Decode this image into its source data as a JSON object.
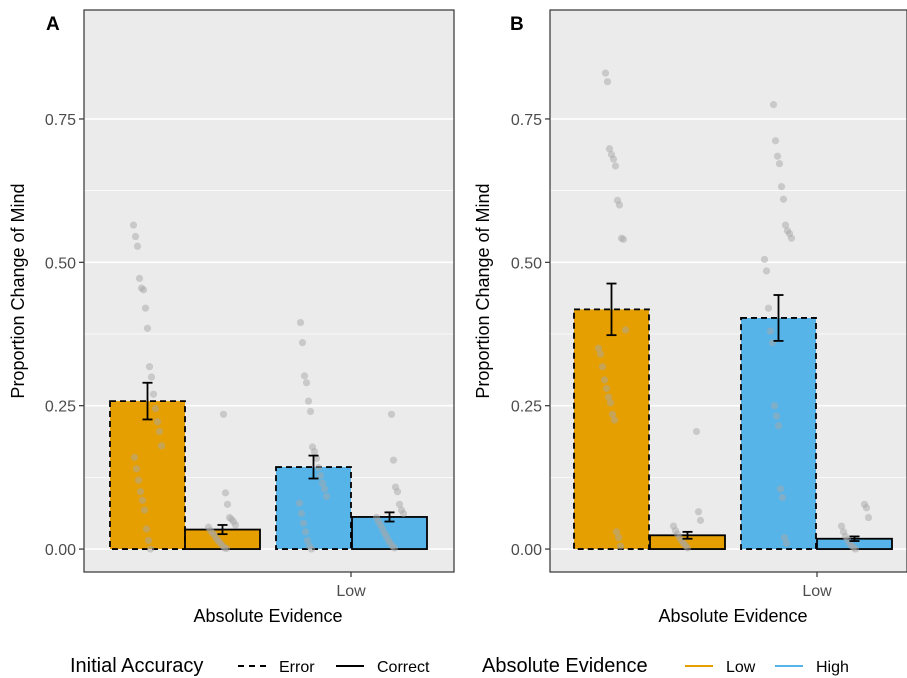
{
  "chart_data": [
    {
      "type": "bar",
      "panel_label": "A",
      "xlabel": "Absolute Evidence",
      "ylabel": "Proportion Change of Mind",
      "ylim": [
        -0.04,
        0.94
      ],
      "yticks": [
        0.0,
        0.25,
        0.5,
        0.75
      ],
      "ytick_labels": [
        "0.00",
        "0.25",
        "0.50",
        "0.75"
      ],
      "xtick_labels": [
        "Low"
      ],
      "grid": true,
      "bars": [
        {
          "evidence": "Low",
          "accuracy": "Error",
          "value": 0.258,
          "err": 0.032,
          "points": [
            0.565,
            0.545,
            0.528,
            0.472,
            0.455,
            0.452,
            0.42,
            0.385,
            0.318,
            0.3,
            0.27,
            0.245,
            0.222,
            0.205,
            0.18,
            0.16,
            0.14,
            0.12,
            0.1,
            0.085,
            0.068,
            0.035,
            0.015,
            0.0
          ]
        },
        {
          "evidence": "Low",
          "accuracy": "Correct",
          "value": 0.034,
          "err": 0.008,
          "points": [
            0.235,
            0.098,
            0.078,
            0.055,
            0.052,
            0.048,
            0.042,
            0.038,
            0.032,
            0.028,
            0.024,
            0.018,
            0.014,
            0.01,
            0.006,
            0.002,
            0.001
          ]
        },
        {
          "evidence": "High",
          "accuracy": "Error",
          "value": 0.143,
          "err": 0.02,
          "points": [
            0.395,
            0.36,
            0.302,
            0.29,
            0.258,
            0.24,
            0.178,
            0.17,
            0.158,
            0.142,
            0.128,
            0.115,
            0.105,
            0.092,
            0.08,
            0.062,
            0.045,
            0.03,
            0.015,
            0.005,
            0.0
          ]
        },
        {
          "evidence": "High",
          "accuracy": "Correct",
          "value": 0.056,
          "err": 0.008,
          "points": [
            0.235,
            0.155,
            0.108,
            0.1,
            0.078,
            0.068,
            0.062,
            0.055,
            0.048,
            0.042,
            0.035,
            0.028,
            0.022,
            0.015,
            0.01,
            0.005,
            0.002
          ]
        }
      ]
    },
    {
      "type": "bar",
      "panel_label": "B",
      "xlabel": "Absolute Evidence",
      "ylabel": "Proportion Change of Mind",
      "ylim": [
        -0.04,
        0.94
      ],
      "yticks": [
        0.0,
        0.25,
        0.5,
        0.75
      ],
      "ytick_labels": [
        "0.00",
        "0.25",
        "0.50",
        "0.75"
      ],
      "xtick_labels": [
        "Low"
      ],
      "grid": true,
      "bars": [
        {
          "evidence": "Low",
          "accuracy": "Error",
          "value": 0.418,
          "err": 0.045,
          "points": [
            0.83,
            0.815,
            0.698,
            0.688,
            0.68,
            0.668,
            0.608,
            0.6,
            0.542,
            0.54,
            0.382,
            0.35,
            0.34,
            0.318,
            0.295,
            0.28,
            0.265,
            0.255,
            0.235,
            0.225,
            0.03,
            0.02,
            0.005
          ]
        },
        {
          "evidence": "Low",
          "accuracy": "Correct",
          "value": 0.024,
          "err": 0.006,
          "points": [
            0.205,
            0.065,
            0.05,
            0.04,
            0.032,
            0.026,
            0.02,
            0.015,
            0.01,
            0.006,
            0.002
          ]
        },
        {
          "evidence": "High",
          "accuracy": "Error",
          "value": 0.403,
          "err": 0.04,
          "points": [
            0.775,
            0.712,
            0.685,
            0.672,
            0.632,
            0.61,
            0.565,
            0.555,
            0.55,
            0.542,
            0.505,
            0.485,
            0.42,
            0.38,
            0.36,
            0.25,
            0.232,
            0.215,
            0.105,
            0.09,
            0.02,
            0.01
          ]
        },
        {
          "evidence": "High",
          "accuracy": "Correct",
          "value": 0.018,
          "err": 0.004,
          "points": [
            0.078,
            0.072,
            0.055,
            0.04,
            0.03,
            0.022,
            0.016,
            0.01,
            0.006,
            0.003,
            0.0
          ]
        }
      ]
    }
  ],
  "legend": {
    "accuracy_title": "Initial Accuracy",
    "accuracy_items": [
      {
        "label": "Error",
        "style": "dashed"
      },
      {
        "label": "Correct",
        "style": "solid"
      }
    ],
    "evidence_title": "Absolute Evidence",
    "evidence_items": [
      {
        "label": "Low",
        "color": "#E69F00"
      },
      {
        "label": "High",
        "color": "#56B4E9"
      }
    ]
  },
  "colors": {
    "low": "#E69F00",
    "high": "#56B4E9",
    "panel_bg": "#EBEBEB",
    "grid": "#FFFFFF",
    "points": "#A8A8A8"
  }
}
